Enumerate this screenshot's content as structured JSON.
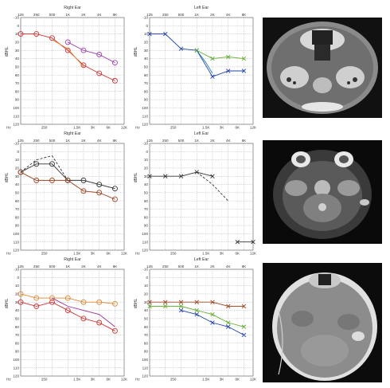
{
  "chart_data": [
    {
      "type": "line",
      "row": 0,
      "ear": "right",
      "title": "Right Ear",
      "ylabel": "dBHL",
      "xunit": "Hz",
      "top_ticks": [
        "125",
        "250",
        "500",
        "1K",
        "2K",
        "4K",
        "8K"
      ],
      "bottom_ticks": [
        "250",
        "1.5K",
        "3K",
        "6K",
        "12K"
      ],
      "y_ticks": [
        "-10",
        "0",
        "10",
        "20",
        "30",
        "40",
        "50",
        "60",
        "70",
        "80",
        "90",
        "100",
        "110",
        "120"
      ],
      "ylim": [
        -10,
        120
      ],
      "series": [
        {
          "color": "#cc3333",
          "marker": "o",
          "dash": "",
          "points": [
            [
              125,
              10
            ],
            [
              250,
              10
            ],
            [
              500,
              15
            ],
            [
              1000,
              30
            ],
            [
              2000,
              48
            ],
            [
              4000,
              58
            ],
            [
              8000,
              67
            ]
          ]
        },
        {
          "color": "#9944aa",
          "marker": "o",
          "dash": "",
          "points": [
            [
              1000,
              20
            ],
            [
              2000,
              30
            ],
            [
              4000,
              35
            ],
            [
              8000,
              45
            ]
          ]
        },
        {
          "color": "#dd8833",
          "marker": "",
          "dash": "",
          "points": [
            [
              500,
              17
            ],
            [
              1000,
              28
            ],
            [
              2000,
              50
            ]
          ]
        }
      ]
    },
    {
      "type": "line",
      "row": 0,
      "ear": "left",
      "title": "Left Ear",
      "ylabel": "dBHL",
      "xunit": "Hz",
      "top_ticks": [
        "125",
        "250",
        "500",
        "1K",
        "2K",
        "4K",
        "8K"
      ],
      "bottom_ticks": [
        "250",
        "1.5K",
        "3K",
        "6K",
        "12K"
      ],
      "y_ticks": [
        "-10",
        "0",
        "10",
        "20",
        "30",
        "40",
        "50",
        "60",
        "70",
        "80",
        "90",
        "100",
        "110",
        "120"
      ],
      "ylim": [
        -10,
        120
      ],
      "series": [
        {
          "color": "#2244aa",
          "marker": "x",
          "dash": "",
          "points": [
            [
              125,
              10
            ],
            [
              250,
              10
            ],
            [
              500,
              28
            ],
            [
              1000,
              30
            ],
            [
              2000,
              62
            ],
            [
              4000,
              55
            ],
            [
              8000,
              55
            ]
          ]
        },
        {
          "color": "#66aa33",
          "marker": "x",
          "dash": "",
          "points": [
            [
              1000,
              30
            ],
            [
              2000,
              40
            ],
            [
              4000,
              38
            ],
            [
              8000,
              40
            ]
          ]
        },
        {
          "color": "#2288aa",
          "marker": "",
          "dash": "",
          "points": [
            [
              1000,
              30
            ],
            [
              1500,
              45
            ],
            [
              2000,
              58
            ]
          ]
        }
      ]
    },
    {
      "type": "line",
      "row": 1,
      "ear": "right",
      "title": "Right Ear",
      "ylabel": "dBHL",
      "xunit": "Hz",
      "top_ticks": [
        "125",
        "250",
        "500",
        "1K",
        "2K",
        "4K",
        "8K"
      ],
      "bottom_ticks": [
        "250",
        "1.5K",
        "3K",
        "6K",
        "12K"
      ],
      "y_ticks": [
        "-10",
        "0",
        "10",
        "20",
        "30",
        "40",
        "50",
        "60",
        "70",
        "80",
        "90",
        "100",
        "110",
        "120"
      ],
      "ylim": [
        -10,
        120
      ],
      "series": [
        {
          "color": "#333333",
          "marker": "o",
          "dash": "",
          "points": [
            [
              125,
              25
            ],
            [
              250,
              15
            ],
            [
              500,
              15
            ],
            [
              1000,
              35
            ],
            [
              2000,
              35
            ],
            [
              4000,
              40
            ],
            [
              8000,
              45
            ]
          ]
        },
        {
          "color": "#994422",
          "marker": "o",
          "dash": "",
          "points": [
            [
              125,
              25
            ],
            [
              250,
              35
            ],
            [
              500,
              35
            ],
            [
              1000,
              35
            ],
            [
              2000,
              48
            ],
            [
              4000,
              50
            ],
            [
              8000,
              58
            ]
          ]
        },
        {
          "color": "#333333",
          "marker": "",
          "dash": "3,2",
          "points": [
            [
              125,
              25
            ],
            [
              250,
              10
            ],
            [
              500,
              5
            ],
            [
              1000,
              35
            ]
          ]
        }
      ]
    },
    {
      "type": "line",
      "row": 1,
      "ear": "left",
      "title": "Left Ear",
      "ylabel": "dBHL",
      "xunit": "Hz",
      "top_ticks": [
        "125",
        "250",
        "500",
        "1K",
        "2K",
        "4K",
        "8K"
      ],
      "bottom_ticks": [
        "250",
        "1.5K",
        "3K",
        "6K",
        "12K"
      ],
      "y_ticks": [
        "-10",
        "0",
        "10",
        "20",
        "30",
        "40",
        "50",
        "60",
        "70",
        "80",
        "90",
        "100",
        "110",
        "120"
      ],
      "ylim": [
        -10,
        120
      ],
      "series": [
        {
          "color": "#333333",
          "marker": "x",
          "dash": "",
          "points": [
            [
              125,
              30
            ],
            [
              250,
              30
            ],
            [
              500,
              30
            ],
            [
              1000,
              25
            ],
            [
              2000,
              30
            ]
          ]
        },
        {
          "color": "#333333",
          "marker": "",
          "dash": "3,2",
          "points": [
            [
              1000,
              25
            ],
            [
              2000,
              40
            ],
            [
              4000,
              60
            ]
          ]
        },
        {
          "color": "#333333",
          "marker": "x",
          "dash": "",
          "points": [
            [
              6000,
              110
            ],
            [
              12000,
              110
            ]
          ]
        }
      ]
    },
    {
      "type": "line",
      "row": 2,
      "ear": "right",
      "title": "Right Ear",
      "ylabel": "dBHL",
      "xunit": "Hz",
      "top_ticks": [
        "125",
        "250",
        "500",
        "1K",
        "2K",
        "4K",
        "8K"
      ],
      "bottom_ticks": [
        "250",
        "1.5K",
        "3K",
        "6K",
        "12K"
      ],
      "y_ticks": [
        "-10",
        "0",
        "10",
        "20",
        "30",
        "40",
        "50",
        "60",
        "70",
        "80",
        "90",
        "100",
        "110",
        "120"
      ],
      "ylim": [
        -10,
        120
      ],
      "series": [
        {
          "color": "#dd8833",
          "marker": "o",
          "dash": "",
          "points": [
            [
              125,
              20
            ],
            [
              250,
              25
            ],
            [
              500,
              25
            ],
            [
              1000,
              25
            ],
            [
              2000,
              30
            ],
            [
              4000,
              30
            ],
            [
              8000,
              32
            ]
          ]
        },
        {
          "color": "#cc3333",
          "marker": "o",
          "dash": "",
          "points": [
            [
              125,
              30
            ],
            [
              250,
              35
            ],
            [
              500,
              30
            ],
            [
              1000,
              40
            ],
            [
              2000,
              50
            ],
            [
              4000,
              55
            ],
            [
              8000,
              65
            ]
          ]
        },
        {
          "color": "#993399",
          "marker": "",
          "dash": "",
          "points": [
            [
              500,
              25
            ],
            [
              1000,
              35
            ],
            [
              2000,
              40
            ],
            [
              4000,
              45
            ],
            [
              8000,
              60
            ]
          ]
        }
      ]
    },
    {
      "type": "line",
      "row": 2,
      "ear": "left",
      "title": "Left Ear",
      "ylabel": "dBHL",
      "xunit": "Hz",
      "top_ticks": [
        "125",
        "250",
        "500",
        "1K",
        "2K",
        "4K",
        "8K"
      ],
      "bottom_ticks": [
        "250",
        "1.5K",
        "3K",
        "6K",
        "12K"
      ],
      "y_ticks": [
        "-10",
        "0",
        "10",
        "20",
        "30",
        "40",
        "50",
        "60",
        "70",
        "80",
        "90",
        "100",
        "110",
        "120"
      ],
      "ylim": [
        -10,
        120
      ],
      "series": [
        {
          "color": "#994422",
          "marker": "x",
          "dash": "",
          "points": [
            [
              125,
              30
            ],
            [
              250,
              30
            ],
            [
              500,
              30
            ],
            [
              1000,
              30
            ],
            [
              2000,
              30
            ],
            [
              4000,
              35
            ],
            [
              8000,
              35
            ]
          ]
        },
        {
          "color": "#66aa33",
          "marker": "x",
          "dash": "",
          "points": [
            [
              125,
              35
            ],
            [
              250,
              35
            ],
            [
              500,
              35
            ],
            [
              1000,
              40
            ],
            [
              2000,
              45
            ],
            [
              4000,
              55
            ],
            [
              8000,
              60
            ]
          ]
        },
        {
          "color": "#2244aa",
          "marker": "x",
          "dash": "",
          "points": [
            [
              500,
              40
            ],
            [
              1000,
              45
            ],
            [
              2000,
              55
            ],
            [
              4000,
              60
            ],
            [
              8000,
              70
            ]
          ]
        }
      ]
    }
  ]
}
